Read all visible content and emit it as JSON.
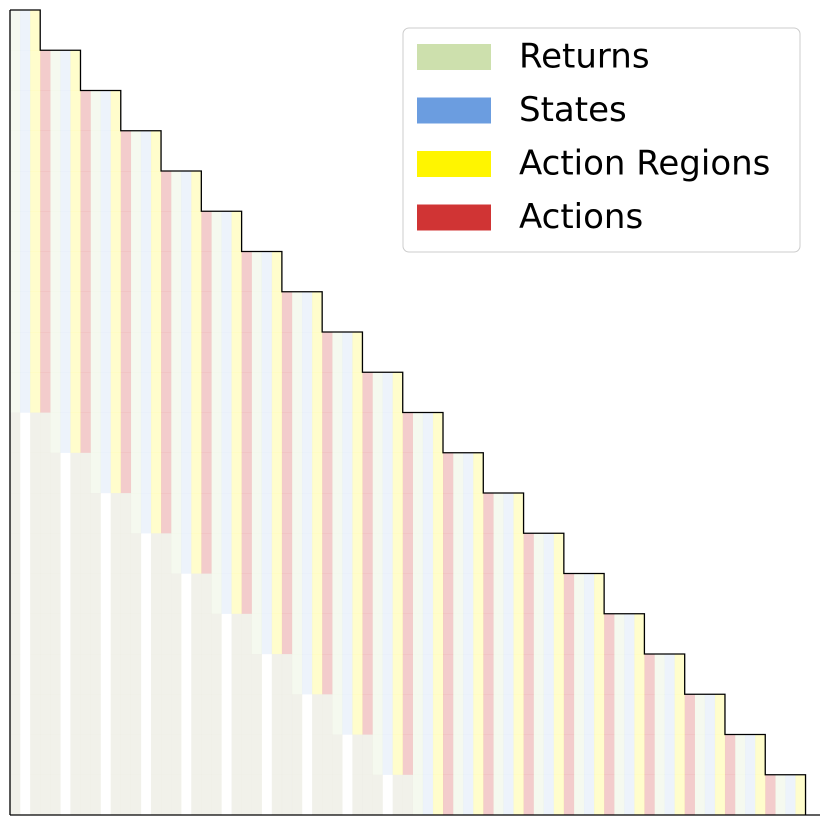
{
  "chart_data": {
    "type": "mask",
    "series": [
      {
        "name": "Returns",
        "color": "#cde0ad"
      },
      {
        "name": "States",
        "color": "#6b9de0"
      },
      {
        "name": "Action Regions",
        "color": "#fff500"
      },
      {
        "name": "Actions",
        "color": "#d03434"
      }
    ]
  }
}
